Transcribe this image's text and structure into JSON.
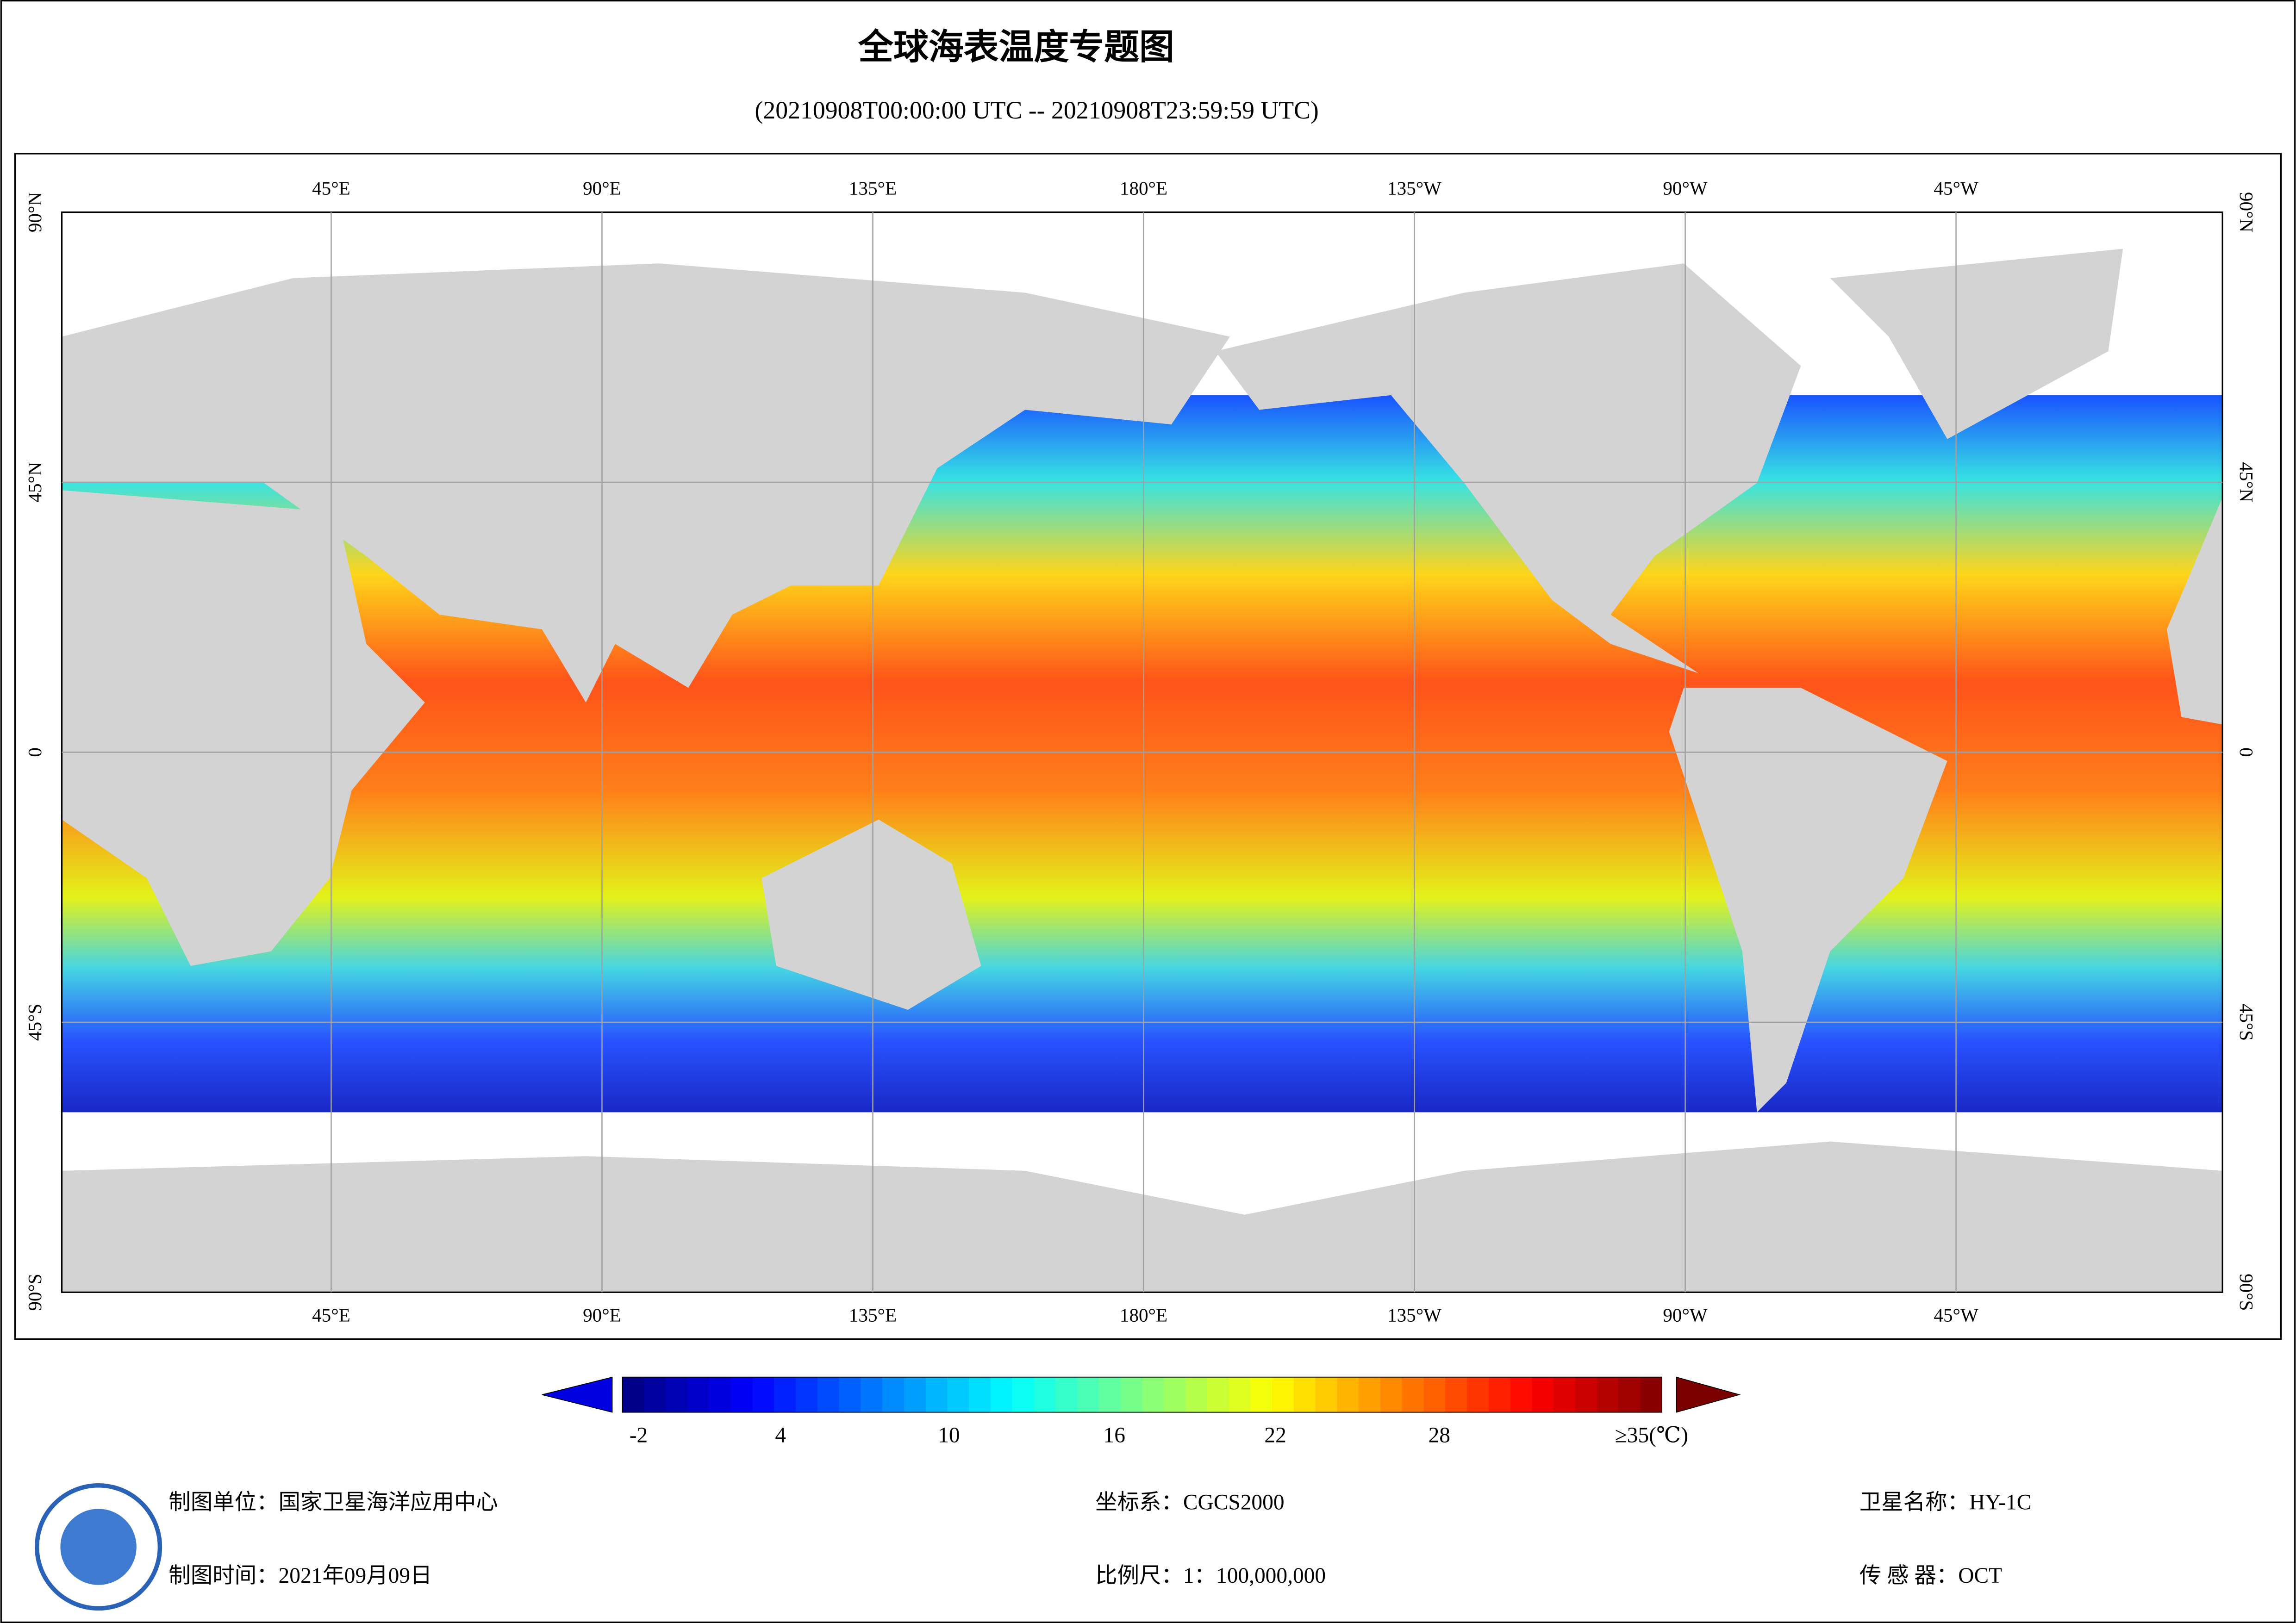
{
  "header": {
    "title": "全球海表温度专题图",
    "subtitle": "(20210908T00:00:00 UTC -- 20210908T23:59:59 UTC)"
  },
  "map": {
    "longitude_labels": [
      "45°E",
      "90°E",
      "135°E",
      "180°E",
      "135°W",
      "90°W",
      "45°W"
    ],
    "latitude_labels": [
      "90°N",
      "45°N",
      "0",
      "45°S",
      "90°S"
    ]
  },
  "colorbar": {
    "labels": [
      "-2",
      "4",
      "10",
      "16",
      "22",
      "28",
      "≥35(℃)"
    ]
  },
  "footer": {
    "unit": "制图单位：国家卫星海洋应用中心",
    "date": "制图时间：2021年09月09日",
    "crs": "坐标系：CGCS2000",
    "scale": "比例尺：1：100,000,000",
    "satellite": "卫星名称：HY-1C",
    "sensor": "传 感 器：OCT"
  }
}
